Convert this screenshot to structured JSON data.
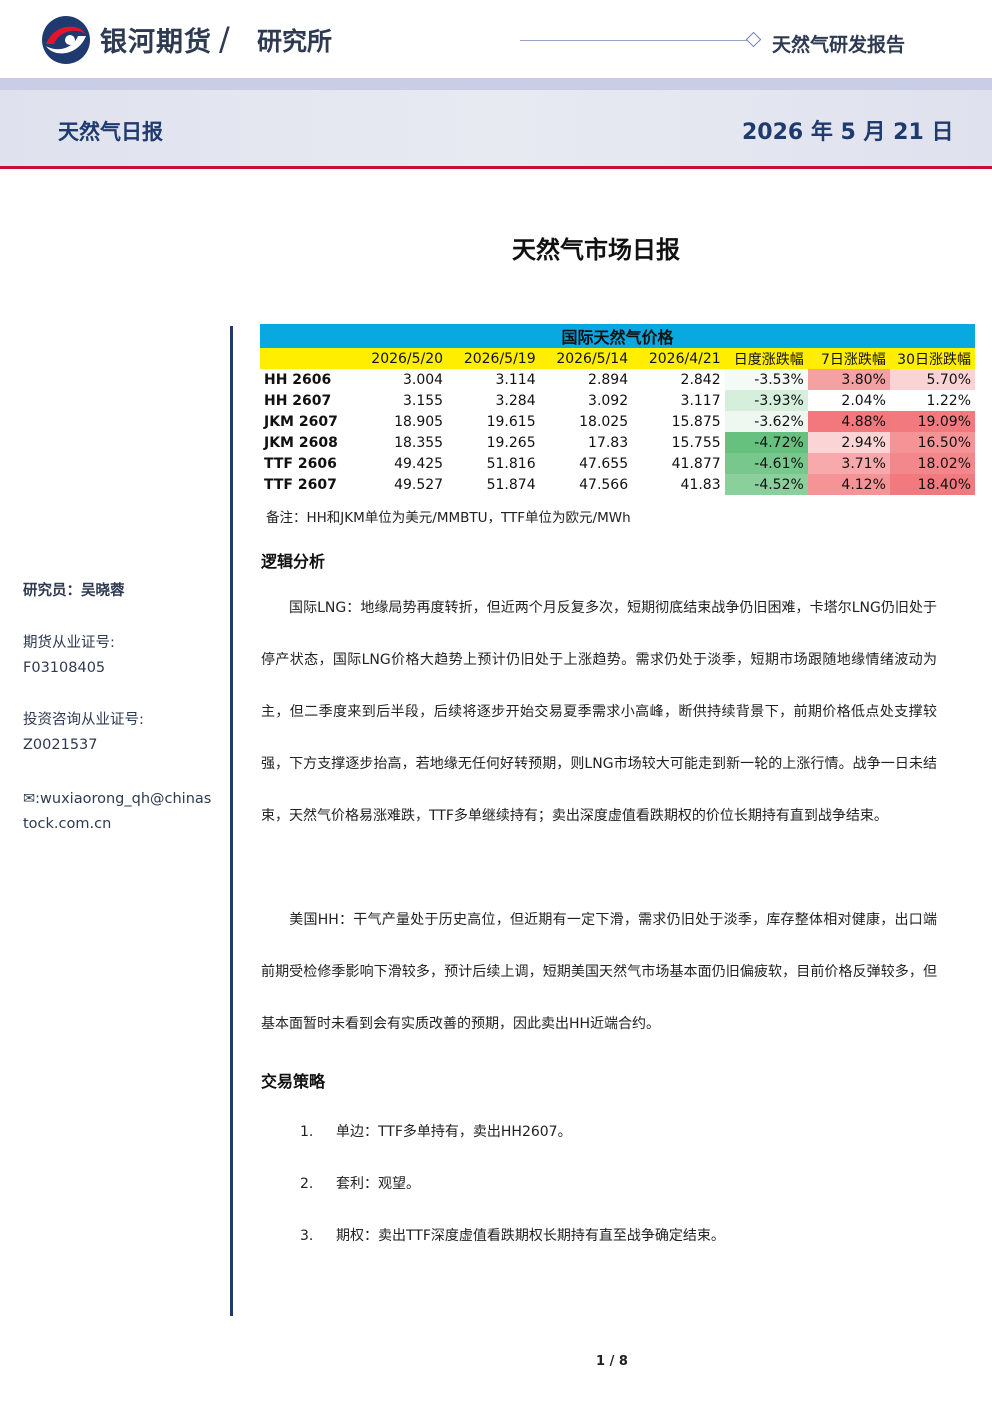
{
  "header": {
    "brand": "银河期货",
    "slash": "/",
    "dept": "研究所",
    "report_type": "天然气研发报告",
    "band_title": "天然气日报",
    "band_date": "2026 年 5 月 21 日"
  },
  "main_title": "天然气市场日报",
  "sidebar": {
    "analyst": "研究员：吴晓蓉",
    "license_label": "期货从业证号:",
    "license_value": "F03108405",
    "consult_label": "投资咨询从业证号:",
    "consult_value": "Z0021537",
    "email_line1": "✉:wuxiaorong_qh@chinas",
    "email_line2": "tock.com.cn"
  },
  "table": {
    "title": "国际天然气价格",
    "headers": [
      "",
      "2026/5/20",
      "2026/5/19",
      "2026/5/14",
      "2026/4/21",
      "日度涨跌幅",
      "7日涨跌幅",
      "30日涨跌幅"
    ],
    "rows": [
      {
        "name": "HH 2606",
        "v1": "3.004",
        "v2": "3.114",
        "v3": "2.894",
        "v4": "2.842",
        "d": "-3.53%",
        "w": "3.80%",
        "m": "5.70%",
        "dc": "#f4faf5",
        "wc": "#f5a0a3",
        "mc": "#fad4d5"
      },
      {
        "name": "HH 2607",
        "v1": "3.155",
        "v2": "3.284",
        "v3": "3.092",
        "v4": "3.117",
        "d": "-3.93%",
        "w": "2.04%",
        "m": "1.22%",
        "dc": "#d6eedc",
        "wc": "#ffffff",
        "mc": "#ffffff"
      },
      {
        "name": "JKM 2607",
        "v1": "18.905",
        "v2": "19.615",
        "v3": "18.025",
        "v4": "15.875",
        "d": "-3.62%",
        "w": "4.88%",
        "m": "19.09%",
        "dc": "#eef8f0",
        "wc": "#f2787d",
        "mc": "#f27a7e"
      },
      {
        "name": "JKM 2608",
        "v1": "18.355",
        "v2": "19.265",
        "v3": "17.83",
        "v4": "15.755",
        "d": "-4.72%",
        "w": "2.94%",
        "m": "16.50%",
        "dc": "#66c07e",
        "wc": "#fbd4d6",
        "mc": "#f59396"
      },
      {
        "name": "TTF 2606",
        "v1": "49.425",
        "v2": "51.816",
        "v3": "47.655",
        "v4": "41.877",
        "d": "-4.61%",
        "w": "3.71%",
        "m": "18.02%",
        "dc": "#78c78d",
        "wc": "#f7a9ac",
        "mc": "#f3878b"
      },
      {
        "name": "TTF 2607",
        "v1": "49.527",
        "v2": "51.874",
        "v3": "47.566",
        "v4": "41.83",
        "d": "-4.52%",
        "w": "4.12%",
        "m": "18.40%",
        "dc": "#8acf9c",
        "wc": "#f59396",
        "mc": "#f2797d"
      }
    ],
    "note": "备注：HH和JKM单位为美元/MMBTU，TTF单位为欧元/MWh"
  },
  "sections": {
    "logic_title": "逻辑分析",
    "logic_p1": "国际LNG：地缘局势再度转折，但近两个月反复多次，短期彻底结束战争仍旧困难，卡塔尔LNG仍旧处于停产状态，国际LNG价格大趋势上预计仍旧处于上涨趋势。需求仍处于淡季，短期市场跟随地缘情绪波动为主，但二季度来到后半段，后续将逐步开始交易夏季需求小高峰，断供持续背景下，前期价格低点处支撑较强，下方支撑逐步抬高，若地缘无任何好转预期，则LNG市场较大可能走到新一轮的上涨行情。战争一日未结束，天然气价格易涨难跌，TTF多单继续持有；卖出深度虚值看跌期权的价位长期持有直到战争结束。",
    "logic_p2": "美国HH：干气产量处于历史高位，但近期有一定下滑，需求仍旧处于淡季，库存整体相对健康，出口端前期受检修季影响下滑较多，预计后续上调，短期美国天然气市场基本面仍旧偏疲软，目前价格反弹较多，但基本面暂时未看到会有实质改善的预期，因此卖出HH近端合约。",
    "strategy_title": "交易策略",
    "strategy_items": [
      {
        "num": "1.",
        "text": "单边：TTF多单持有，卖出HH2607。"
      },
      {
        "num": "2.",
        "text": "套利：观望。"
      },
      {
        "num": "3.",
        "text": "期权：卖出TTF深度虚值看跌期权长期持有直至战争确定结束。"
      }
    ]
  },
  "footer": {
    "page": "1 / 8"
  },
  "colors": {
    "brand_navy": "#1f3a6e",
    "accent_red": "#c8102e",
    "table_head": "#0aa8e0",
    "table_sub": "#ffee00"
  }
}
